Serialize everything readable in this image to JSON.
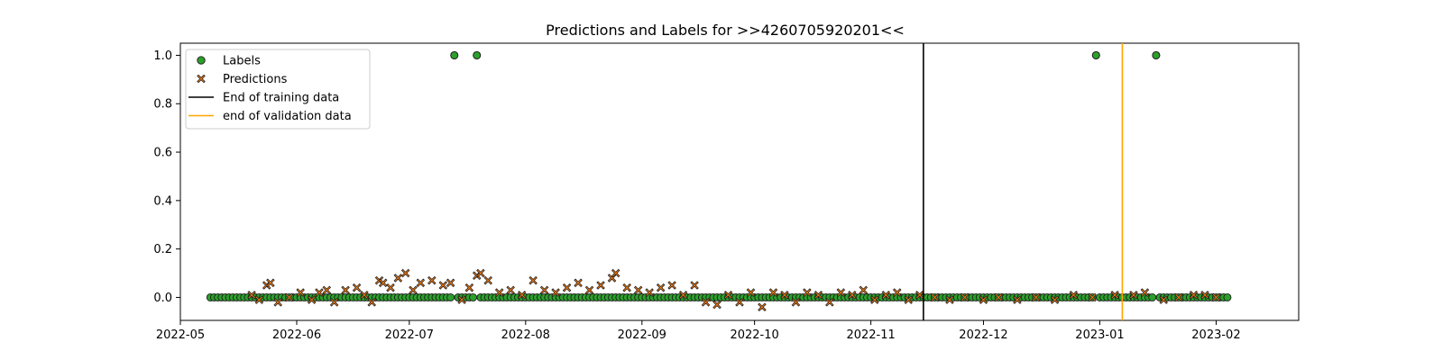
{
  "chart_data": {
    "type": "scatter",
    "title": "Predictions and Labels for >>4260705920201<<",
    "xlabel": "",
    "ylabel": "",
    "x_range": [
      "2022-05-01",
      "2023-02-23"
    ],
    "y_range": [
      -0.095,
      1.05
    ],
    "x_ticks": [
      "2022-05",
      "2022-06",
      "2022-07",
      "2022-08",
      "2022-09",
      "2022-10",
      "2022-11",
      "2022-12",
      "2023-01",
      "2023-02"
    ],
    "y_ticks": [
      "0.0",
      "0.2",
      "0.4",
      "0.6",
      "0.8",
      "1.0"
    ],
    "data_start": "2022-05-09",
    "data_end": "2023-02-04",
    "labels_ones": [
      "2022-07-13",
      "2022-07-19",
      "2022-12-31",
      "2023-01-16"
    ],
    "prediction_samples": [
      [
        "2022-05-20",
        0.01
      ],
      [
        "2022-05-22",
        -0.01
      ],
      [
        "2022-05-24",
        0.05
      ],
      [
        "2022-05-25",
        0.06
      ],
      [
        "2022-05-27",
        -0.02
      ],
      [
        "2022-05-30",
        0.0
      ],
      [
        "2022-06-02",
        0.02
      ],
      [
        "2022-06-05",
        -0.01
      ],
      [
        "2022-06-07",
        0.02
      ],
      [
        "2022-06-09",
        0.03
      ],
      [
        "2022-06-11",
        -0.02
      ],
      [
        "2022-06-14",
        0.03
      ],
      [
        "2022-06-17",
        0.04
      ],
      [
        "2022-06-19",
        0.01
      ],
      [
        "2022-06-21",
        -0.02
      ],
      [
        "2022-06-23",
        0.07
      ],
      [
        "2022-06-24",
        0.06
      ],
      [
        "2022-06-26",
        0.04
      ],
      [
        "2022-06-28",
        0.08
      ],
      [
        "2022-06-30",
        0.1
      ],
      [
        "2022-07-02",
        0.03
      ],
      [
        "2022-07-04",
        0.06
      ],
      [
        "2022-07-07",
        0.07
      ],
      [
        "2022-07-10",
        0.05
      ],
      [
        "2022-07-12",
        0.06
      ],
      [
        "2022-07-15",
        -0.01
      ],
      [
        "2022-07-17",
        0.04
      ],
      [
        "2022-07-19",
        0.09
      ],
      [
        "2022-07-20",
        0.1
      ],
      [
        "2022-07-22",
        0.07
      ],
      [
        "2022-07-25",
        0.02
      ],
      [
        "2022-07-28",
        0.03
      ],
      [
        "2022-07-31",
        0.01
      ],
      [
        "2022-08-03",
        0.07
      ],
      [
        "2022-08-06",
        0.03
      ],
      [
        "2022-08-09",
        0.02
      ],
      [
        "2022-08-12",
        0.04
      ],
      [
        "2022-08-15",
        0.06
      ],
      [
        "2022-08-18",
        0.03
      ],
      [
        "2022-08-21",
        0.05
      ],
      [
        "2022-08-24",
        0.08
      ],
      [
        "2022-08-25",
        0.1
      ],
      [
        "2022-08-28",
        0.04
      ],
      [
        "2022-08-31",
        0.03
      ],
      [
        "2022-09-03",
        0.02
      ],
      [
        "2022-09-06",
        0.04
      ],
      [
        "2022-09-09",
        0.05
      ],
      [
        "2022-09-12",
        0.01
      ],
      [
        "2022-09-15",
        0.05
      ],
      [
        "2022-09-18",
        -0.02
      ],
      [
        "2022-09-21",
        -0.03
      ],
      [
        "2022-09-24",
        0.01
      ],
      [
        "2022-09-27",
        -0.02
      ],
      [
        "2022-09-30",
        0.02
      ],
      [
        "2022-10-03",
        -0.04
      ],
      [
        "2022-10-06",
        0.02
      ],
      [
        "2022-10-09",
        0.01
      ],
      [
        "2022-10-12",
        -0.02
      ],
      [
        "2022-10-15",
        0.02
      ],
      [
        "2022-10-18",
        0.01
      ],
      [
        "2022-10-21",
        -0.02
      ],
      [
        "2022-10-24",
        0.02
      ],
      [
        "2022-10-27",
        0.01
      ],
      [
        "2022-10-30",
        0.03
      ],
      [
        "2022-11-02",
        -0.01
      ],
      [
        "2022-11-05",
        0.01
      ],
      [
        "2022-11-08",
        0.02
      ],
      [
        "2022-11-11",
        -0.01
      ],
      [
        "2022-11-14",
        0.01
      ],
      [
        "2022-11-18",
        0.0
      ],
      [
        "2022-11-22",
        -0.01
      ],
      [
        "2022-11-26",
        0.0
      ],
      [
        "2022-12-01",
        -0.01
      ],
      [
        "2022-12-05",
        0.0
      ],
      [
        "2022-12-10",
        -0.01
      ],
      [
        "2022-12-15",
        0.0
      ],
      [
        "2022-12-20",
        -0.01
      ],
      [
        "2022-12-25",
        0.01
      ],
      [
        "2022-12-30",
        0.0
      ],
      [
        "2023-01-05",
        0.01
      ],
      [
        "2023-01-10",
        0.01
      ],
      [
        "2023-01-13",
        0.02
      ],
      [
        "2023-01-18",
        -0.01
      ],
      [
        "2023-01-22",
        0.0
      ],
      [
        "2023-01-26",
        0.01
      ],
      [
        "2023-01-29",
        0.01
      ],
      [
        "2023-02-01",
        0.0
      ]
    ],
    "vlines": [
      {
        "name": "End of training data",
        "date": "2022-11-15",
        "color": "#000000"
      },
      {
        "name": "end of validation data",
        "date": "2023-01-07",
        "color": "#ffa500"
      }
    ],
    "legend": {
      "placement": "top-left",
      "entries": [
        {
          "label": "Labels",
          "kind": "circle",
          "color": "#2ca02c"
        },
        {
          "label": "Predictions",
          "kind": "x",
          "color": "#ff7f0e"
        },
        {
          "label": "End of training data",
          "kind": "line",
          "color": "#000000"
        },
        {
          "label": "end of validation data",
          "kind": "line",
          "color": "#ffa500"
        }
      ]
    }
  }
}
